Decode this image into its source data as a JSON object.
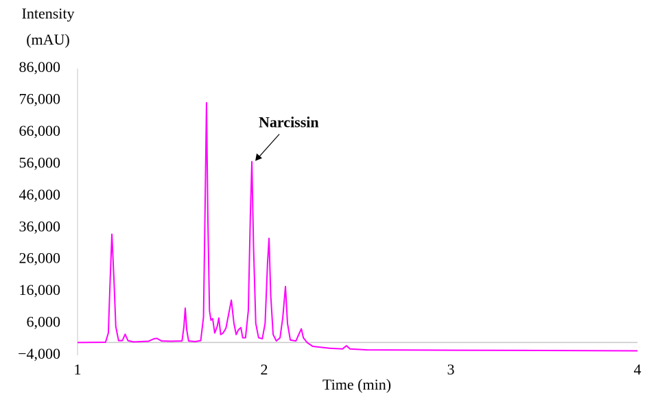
{
  "chart_data": {
    "type": "line",
    "y_label": [
      "Intensity",
      "(mAU)"
    ],
    "x_label": "Time (min)",
    "xlim": [
      1,
      4
    ],
    "xticks": [
      1,
      2,
      3,
      4
    ],
    "ylim": [
      -4000,
      86000
    ],
    "yticks": [
      {
        "value": -4000,
        "label": "−4,000"
      },
      {
        "value": 6000,
        "label": "6,000"
      },
      {
        "value": 16000,
        "label": "16,000"
      },
      {
        "value": 26000,
        "label": "26,000"
      },
      {
        "value": 36000,
        "label": "36,000"
      },
      {
        "value": 46000,
        "label": "46,000"
      },
      {
        "value": 56000,
        "label": "56,000"
      },
      {
        "value": 66000,
        "label": "66,000"
      },
      {
        "value": 76000,
        "label": "76,000"
      },
      {
        "value": 86000,
        "label": "86,000"
      }
    ],
    "grid": false,
    "annotation": {
      "text": "Narcissin",
      "x": 1.934,
      "y": 56800
    },
    "series": [
      {
        "color": "#ff00ff",
        "x": [
          1.0,
          1.15,
          1.165,
          1.175,
          1.184,
          1.195,
          1.205,
          1.22,
          1.24,
          1.255,
          1.27,
          1.3,
          1.38,
          1.41,
          1.425,
          1.45,
          1.5,
          1.56,
          1.57,
          1.577,
          1.585,
          1.595,
          1.63,
          1.66,
          1.675,
          1.684,
          1.691,
          1.698,
          1.707,
          1.715,
          1.724,
          1.735,
          1.748,
          1.757,
          1.767,
          1.78,
          1.795,
          1.81,
          1.824,
          1.838,
          1.85,
          1.862,
          1.875,
          1.885,
          1.9,
          1.915,
          1.926,
          1.934,
          1.943,
          1.955,
          1.97,
          1.99,
          2.005,
          2.018,
          2.026,
          2.035,
          2.048,
          2.065,
          2.085,
          2.1,
          2.114,
          2.125,
          2.14,
          2.17,
          2.185,
          2.199,
          2.21,
          2.23,
          2.26,
          2.35,
          2.42,
          2.441,
          2.46,
          2.55,
          3.0,
          3.5,
          4.0
        ],
        "values": [
          0,
          100,
          3000,
          20000,
          34000,
          20000,
          5000,
          600,
          600,
          2600,
          600,
          200,
          400,
          1200,
          1300,
          500,
          400,
          500,
          5000,
          10800,
          4000,
          500,
          300,
          600,
          8000,
          45000,
          75300,
          40000,
          10000,
          7000,
          7500,
          3000,
          5000,
          7700,
          2500,
          3000,
          4500,
          9000,
          13300,
          6000,
          2500,
          4000,
          4700,
          1500,
          1500,
          10000,
          40000,
          56800,
          30000,
          6000,
          1500,
          1200,
          6000,
          25000,
          32700,
          15000,
          2500,
          500,
          1500,
          8000,
          17600,
          6000,
          800,
          500,
          2500,
          4300,
          1500,
          0,
          -1200,
          -1800,
          -2000,
          -1000,
          -2000,
          -2300,
          -2400,
          -2500,
          -2600
        ]
      }
    ]
  }
}
